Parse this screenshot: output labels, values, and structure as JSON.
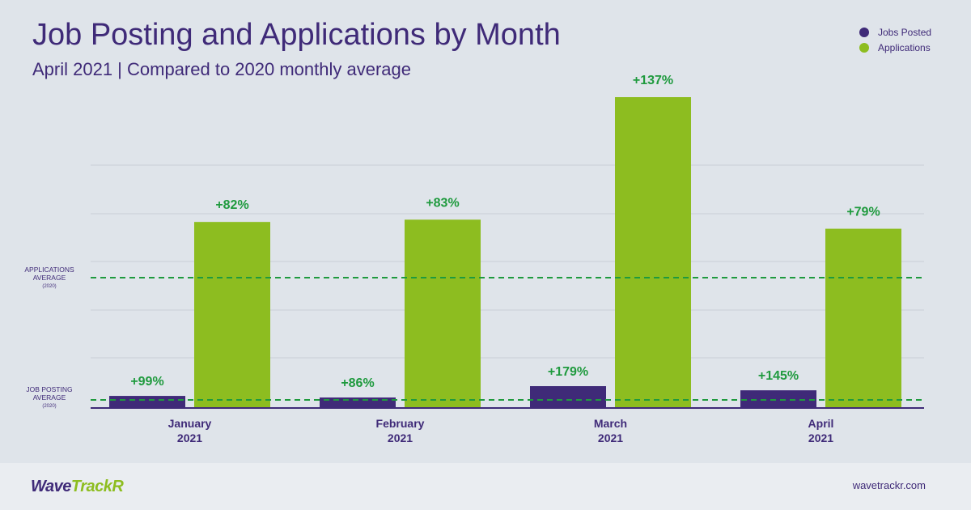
{
  "colors": {
    "jobs": "#3f2a78",
    "applications": "#8dbd20",
    "label_green": "#1f9a3e",
    "reference_line": "#1f9a3e",
    "grid": "#c8ced6",
    "axis": "#3f2a78",
    "text": "#3f2a78"
  },
  "footer": {
    "logo_part1": "Wave",
    "logo_part2": "TrackR",
    "site": "wavetrackr.com"
  },
  "chart_data": {
    "type": "bar",
    "title": "Job Posting and Applications by Month",
    "subtitle": "April 2021 | Compared to 2020 monthly average",
    "categories": [
      [
        "January",
        "2021"
      ],
      [
        "February",
        "2021"
      ],
      [
        "March",
        "2021"
      ],
      [
        "April",
        "2021"
      ]
    ],
    "series": [
      {
        "name": "Jobs Posted",
        "values": [
          99,
          86,
          179,
          145
        ],
        "labels": [
          "+99%",
          "+86%",
          "+179%",
          "+145%"
        ]
      },
      {
        "name": "Applications",
        "values": [
          82,
          83,
          137,
          79
        ],
        "labels": [
          "+82%",
          "+83%",
          "+137%",
          "+79%"
        ]
      }
    ],
    "reference_lines": [
      {
        "label": [
          "APPLICATIONS",
          "AVERAGE",
          "(2020)"
        ],
        "series": "Applications"
      },
      {
        "label": [
          "JOB POSTING",
          "AVERAGE",
          "(2020)"
        ],
        "series": "Jobs Posted"
      }
    ],
    "y_unit": "% change vs 2020 monthly average",
    "grid": true,
    "legend": "top-right"
  }
}
